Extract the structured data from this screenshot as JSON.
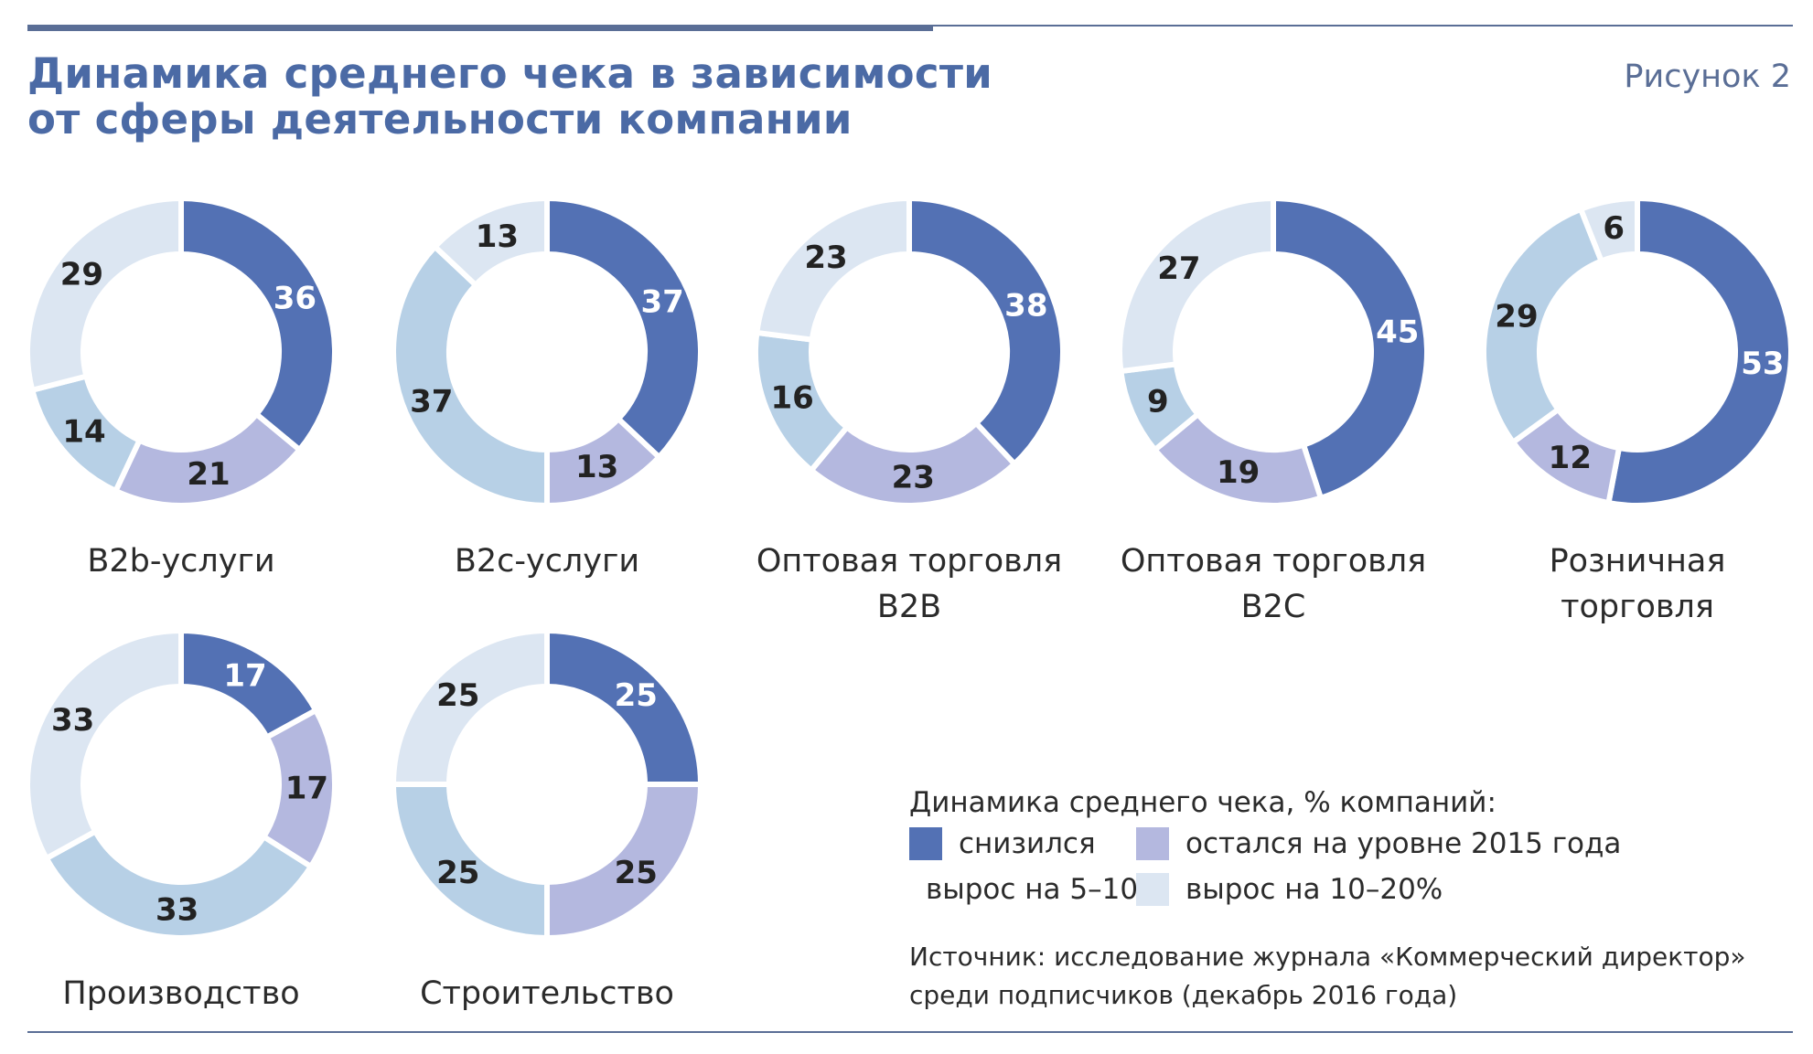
{
  "header": {
    "title_line1": "Динамика среднего чека в зависимости",
    "title_line2": "от сферы деятельности компании",
    "figure_label": "Рисунок 2"
  },
  "colors": {
    "decreased": "#5371b4",
    "same": "#b4b8df",
    "grew_5_10": "#b7d0e6",
    "grew_10_20": "#dce6f2",
    "label_dark": "#222222",
    "label_light": "#ffffff"
  },
  "chart_data": [
    {
      "type": "pie",
      "title": [
        "B2b-услуги"
      ],
      "values": [
        36,
        21,
        14,
        29
      ]
    },
    {
      "type": "pie",
      "title": [
        "B2c-услуги"
      ],
      "values": [
        37,
        13,
        37,
        13
      ]
    },
    {
      "type": "pie",
      "title": [
        "Оптовая торговля",
        "B2B"
      ],
      "values": [
        38,
        23,
        16,
        23
      ]
    },
    {
      "type": "pie",
      "title": [
        "Оптовая торговля",
        "B2C"
      ],
      "values": [
        45,
        19,
        9,
        27
      ]
    },
    {
      "type": "pie",
      "title": [
        "Розничная",
        "торговля"
      ],
      "values": [
        53,
        12,
        29,
        6
      ]
    },
    {
      "type": "pie",
      "title": [
        "Производство"
      ],
      "values": [
        17,
        17,
        33,
        33
      ]
    },
    {
      "type": "pie",
      "title": [
        "Строительство"
      ],
      "values": [
        25,
        25,
        25,
        25
      ]
    }
  ],
  "legend": {
    "title": "Динамика среднего чека, % компаний:",
    "items": [
      {
        "label": "снизился",
        "color": "#5371b4"
      },
      {
        "label": "остался на уровне 2015 года",
        "color": "#b4b8df"
      },
      {
        "label": "вырос на 5–10%",
        "color": "#b7d0e6"
      },
      {
        "label": "вырос на 10–20%",
        "color": "#dce6f2"
      }
    ]
  },
  "source": {
    "line1": "Источник: исследование журнала «Коммерческий директор»",
    "line2": "среди подписчиков (декабрь 2016 года)"
  }
}
